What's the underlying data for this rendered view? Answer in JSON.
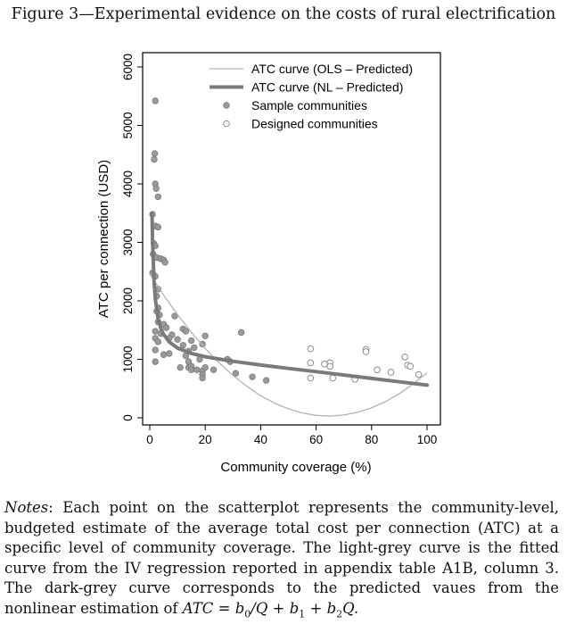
{
  "figure_title": "Figure 3—Experimental evidence on the costs of rural electrification",
  "notes": {
    "lead": "Notes",
    "body": ": Each point on the scatterplot represents the community-level, budgeted estimate of the average total cost per connection (ATC) at a specific level of community coverage. The light-grey curve is the fitted curve from the IV regression reported in appendix table A1B, column 3. The dark-grey curve corresponds to the predicted vaues from the nonlinear estimation of",
    "formula_lhs": "ATC",
    "formula_eq": " = ",
    "formula_b0": "b",
    "formula_b0_sub": "0",
    "formula_mid": "/Q + ",
    "formula_b1": "b",
    "formula_b1_sub": "1",
    "formula_plus": " + ",
    "formula_b2": "b",
    "formula_b2_sub": "2",
    "formula_end": "Q."
  },
  "colors": {
    "ols_curve": "#b3b3b3",
    "nl_curve": "#7a7a7a",
    "sample_fill": "#9a9a9a",
    "sample_stroke": "#7a7a7a",
    "designed_stroke": "#8c8c8c",
    "axis": "#000000"
  },
  "chart_data": {
    "type": "scatter",
    "xlabel": "Community coverage (%)",
    "ylabel": "ATC per connection (USD)",
    "xlim": [
      0,
      100
    ],
    "ylim": [
      0,
      6000
    ],
    "xticks": [
      0,
      20,
      40,
      60,
      80,
      100
    ],
    "yticks": [
      0,
      1000,
      2000,
      3000,
      4000,
      5000,
      6000
    ],
    "grid": false,
    "legend_position": "top-right",
    "legend": [
      {
        "label": "ATC curve (OLS – Predicted)",
        "kind": "thin-line"
      },
      {
        "label": "ATC curve (NL – Predicted)",
        "kind": "thick-line"
      },
      {
        "label": "Sample communities",
        "kind": "filled-circle"
      },
      {
        "label": "Designed communities",
        "kind": "hollow-circle"
      }
    ],
    "series": [
      {
        "name": "Sample communities",
        "marker": "filled",
        "points": [
          [
            2,
            5420
          ],
          [
            1.8,
            4520
          ],
          [
            1.6,
            4420
          ],
          [
            2,
            4000
          ],
          [
            2.3,
            3920
          ],
          [
            3,
            3780
          ],
          [
            1,
            3480
          ],
          [
            2,
            3280
          ],
          [
            3,
            3260
          ],
          [
            1.5,
            2980
          ],
          [
            2,
            2940
          ],
          [
            1.2,
            2800
          ],
          [
            2.5,
            2740
          ],
          [
            4,
            2720
          ],
          [
            5,
            2700
          ],
          [
            5.5,
            2660
          ],
          [
            1,
            2480
          ],
          [
            2,
            2420
          ],
          [
            3,
            2200
          ],
          [
            2.5,
            2080
          ],
          [
            3,
            1880
          ],
          [
            2.5,
            1820
          ],
          [
            3.5,
            1760
          ],
          [
            9,
            1740
          ],
          [
            3,
            1640
          ],
          [
            5,
            1600
          ],
          [
            6,
            1540
          ],
          [
            2,
            1480
          ],
          [
            4,
            1440
          ],
          [
            12,
            1520
          ],
          [
            13,
            1480
          ],
          [
            8,
            1420
          ],
          [
            2,
            1360
          ],
          [
            3,
            1300
          ],
          [
            7,
            1360
          ],
          [
            10,
            1340
          ],
          [
            20,
            1400
          ],
          [
            15,
            1320
          ],
          [
            19,
            1260
          ],
          [
            16,
            1200
          ],
          [
            12,
            1240
          ],
          [
            14,
            1140
          ],
          [
            2,
            1160
          ],
          [
            7,
            1100
          ],
          [
            13,
            1060
          ],
          [
            5,
            1080
          ],
          [
            18,
            1000
          ],
          [
            28,
            1000
          ],
          [
            29,
            960
          ],
          [
            14,
            960
          ],
          [
            2,
            960
          ],
          [
            11,
            860
          ],
          [
            14,
            860
          ],
          [
            15,
            880
          ],
          [
            15,
            820
          ],
          [
            17,
            820
          ],
          [
            19,
            800
          ],
          [
            20,
            860
          ],
          [
            23,
            820
          ],
          [
            19,
            740
          ],
          [
            19,
            680
          ],
          [
            31,
            760
          ],
          [
            37,
            700
          ],
          [
            42,
            640
          ],
          [
            33,
            1460
          ]
        ]
      },
      {
        "name": "Designed communities",
        "marker": "hollow",
        "points": [
          [
            58,
            1180
          ],
          [
            78,
            1170
          ],
          [
            78,
            1130
          ],
          [
            92,
            1040
          ],
          [
            58,
            940
          ],
          [
            63,
            920
          ],
          [
            65,
            940
          ],
          [
            65,
            880
          ],
          [
            93,
            900
          ],
          [
            94,
            880
          ],
          [
            82,
            820
          ],
          [
            87,
            780
          ],
          [
            97,
            740
          ],
          [
            58,
            680
          ],
          [
            66,
            680
          ],
          [
            74,
            660
          ]
        ]
      },
      {
        "name": "ATC curve (OLS – Predicted)",
        "kind": "line",
        "x": [
          0,
          5,
          10,
          15,
          20,
          25,
          30,
          35,
          40,
          45,
          50,
          55,
          60,
          65,
          70,
          75,
          80,
          85,
          90,
          95,
          100
        ],
        "y": [
          2460,
          2098,
          1765,
          1461,
          1186,
          941,
          725,
          537,
          379,
          251,
          152,
          82,
          41,
          29,
          47,
          94,
          170,
          276,
          412,
          577,
          771
        ]
      },
      {
        "name": "ATC curve (NL – Predicted)",
        "kind": "line",
        "x": [
          0.8,
          1,
          1.5,
          2,
          3,
          4,
          5,
          7,
          10,
          15,
          20,
          30,
          40,
          50,
          60,
          70,
          80,
          90,
          100
        ],
        "y": [
          3499,
          3030,
          2365,
          2033,
          1698,
          1528,
          1424,
          1297,
          1193,
          1101,
          1045,
          967,
          902,
          845,
          789,
          732,
          674,
          616,
          559
        ]
      }
    ]
  }
}
